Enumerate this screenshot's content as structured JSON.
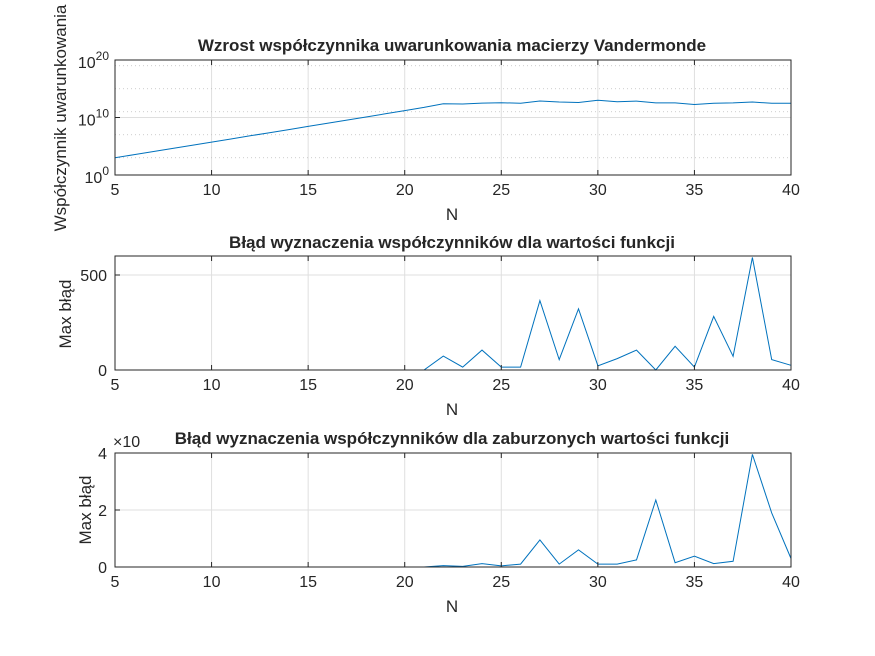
{
  "chart_data": [
    {
      "type": "line",
      "title": "Wzrost współczynnika uwarunkowania macierzy Vandermonde",
      "xlabel": "N",
      "ylabel": "Współczynnik uwarunkowania",
      "yscale": "log",
      "xlim": [
        5,
        40
      ],
      "ylim": [
        1,
        1e+20
      ],
      "grid": true,
      "xticks": [
        "5",
        "10",
        "15",
        "20",
        "25",
        "30",
        "35",
        "40"
      ],
      "ytick_labels": [
        {
          "base": "10",
          "exp": "0",
          "value": 1
        },
        {
          "base": "10",
          "exp": "10",
          "value": 10000000000.0
        },
        {
          "base": "10",
          "exp": "20",
          "value": 1e+20
        }
      ],
      "x": [
        5,
        6,
        7,
        8,
        9,
        10,
        11,
        12,
        13,
        14,
        15,
        16,
        17,
        18,
        19,
        20,
        21,
        22,
        23,
        24,
        25,
        26,
        27,
        28,
        29,
        30,
        31,
        32,
        33,
        34,
        35,
        36,
        37,
        38,
        39,
        40
      ],
      "y": [
        1000.0,
        3500.0,
        12000.0,
        42000.0,
        150000.0,
        520000.0,
        1800000.0,
        6500000.0,
        23000000.0,
        80000000.0,
        280000000.0,
        1000000000.0,
        3500000000.0,
        12000000000.0,
        44000000000.0,
        160000000000.0,
        580000000000.0,
        2500000000000.0,
        2200000000000.0,
        3200000000000.0,
        3800000000000.0,
        3000000000000.0,
        7500000000000.0,
        5000000000000.0,
        4000000000000.0,
        10000000000000.0,
        5500000000000.0,
        7000000000000.0,
        3500000000000.0,
        3500000000000.0,
        1800000000000.0,
        3000000000000.0,
        3500000000000.0,
        5000000000000.0,
        3000000000000.0,
        3000000000000.0
      ]
    },
    {
      "type": "line",
      "title": "Błąd wyznaczenia współczynników dla wartości funkcji",
      "xlabel": "N",
      "ylabel": "Max błąd",
      "xlim": [
        5,
        40
      ],
      "ylim": [
        0,
        600
      ],
      "grid": true,
      "xticks": [
        "5",
        "10",
        "15",
        "20",
        "25",
        "30",
        "35",
        "40"
      ],
      "yticks": [
        "0",
        "500"
      ],
      "ytick_values": [
        0,
        500
      ],
      "x": [
        5,
        6,
        7,
        8,
        9,
        10,
        11,
        12,
        13,
        14,
        15,
        16,
        17,
        18,
        19,
        20,
        21,
        22,
        23,
        24,
        25,
        26,
        27,
        28,
        29,
        30,
        31,
        32,
        33,
        34,
        35,
        36,
        37,
        38,
        39,
        40
      ],
      "y": [
        0,
        0,
        0,
        0,
        0,
        0,
        0,
        0,
        0,
        0,
        0,
        0,
        0,
        0,
        0,
        0,
        0,
        73,
        15,
        105,
        15,
        15,
        365,
        55,
        322,
        22,
        60,
        105,
        0,
        125,
        15,
        282,
        72,
        592,
        55,
        25
      ]
    },
    {
      "type": "line",
      "title": "Błąd wyznaczenia współczynników dla zaburzonych wartości funkcji",
      "xlabel": "N",
      "ylabel": "Max błąd",
      "xlim": [
        5,
        40
      ],
      "ylim": [
        0,
        4
      ],
      "exponent_label": "×10",
      "grid": true,
      "xticks": [
        "5",
        "10",
        "15",
        "20",
        "25",
        "30",
        "35",
        "40"
      ],
      "yticks": [
        "0",
        "2",
        "4"
      ],
      "ytick_values": [
        0,
        2,
        4
      ],
      "x": [
        5,
        6,
        7,
        8,
        9,
        10,
        11,
        12,
        13,
        14,
        15,
        16,
        17,
        18,
        19,
        20,
        21,
        22,
        23,
        24,
        25,
        26,
        27,
        28,
        29,
        30,
        31,
        32,
        33,
        34,
        35,
        36,
        37,
        38,
        39,
        40
      ],
      "y": [
        0,
        0,
        0,
        0,
        0,
        0,
        0,
        0,
        0,
        0,
        0,
        0,
        0,
        0,
        0,
        0,
        0,
        0.05,
        0.02,
        0.12,
        0.04,
        0.1,
        0.95,
        0.1,
        0.6,
        0.1,
        0.1,
        0.25,
        2.35,
        0.15,
        0.38,
        0.12,
        0.2,
        3.95,
        1.9,
        0.3
      ]
    }
  ],
  "colors": {
    "series": "#0072BD",
    "axis": "#262626",
    "grid": "#dfdfdf"
  }
}
